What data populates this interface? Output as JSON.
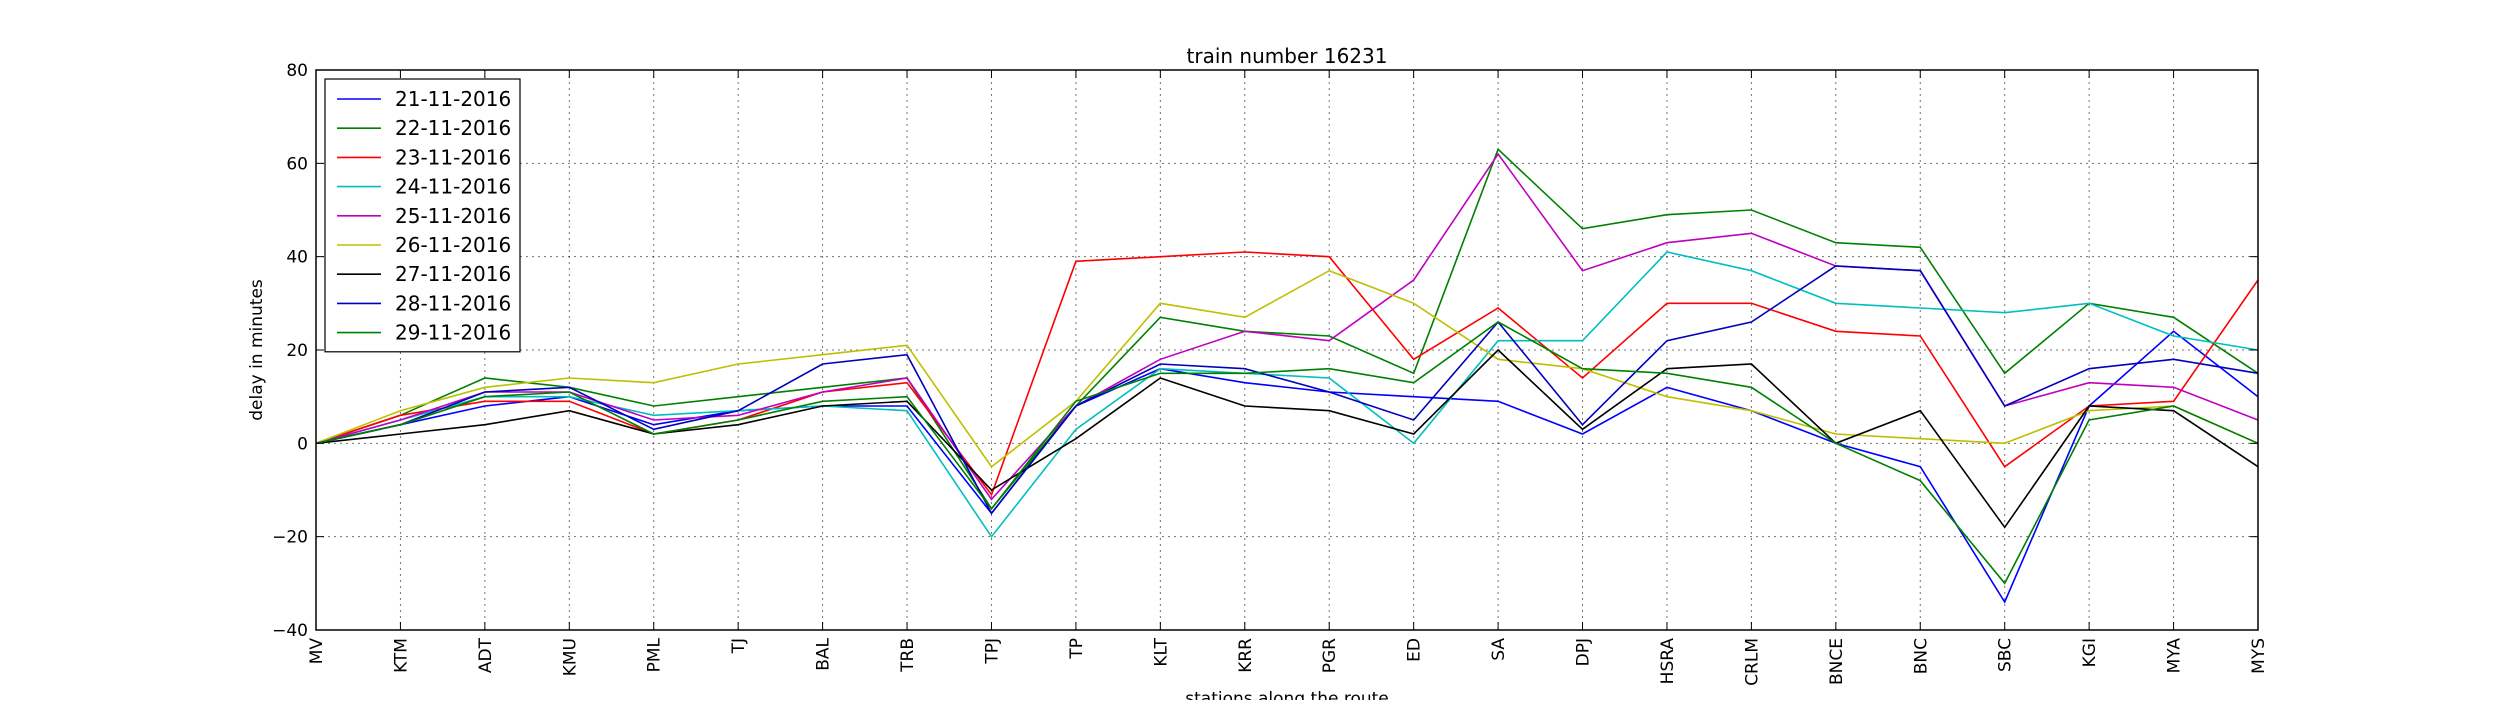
{
  "chart_data": {
    "type": "line",
    "title": "train number 16231",
    "xlabel": "stations along the route",
    "ylabel": "delay in minutes",
    "ylim": [
      -40,
      80
    ],
    "yticks": [
      -40,
      -20,
      0,
      20,
      40,
      60,
      80
    ],
    "ytick_labels": [
      "−40",
      "−20",
      "0",
      "20",
      "40",
      "60",
      "80"
    ],
    "grid": true,
    "legend_position": "top-left",
    "categories": [
      "MV",
      "KTM",
      "ADT",
      "KMU",
      "PML",
      "TJ",
      "BAL",
      "TRB",
      "TPJ",
      "TP",
      "KLT",
      "KRR",
      "PGR",
      "ED",
      "SA",
      "DPJ",
      "HSRA",
      "CRLM",
      "BNCE",
      "BNC",
      "SBC",
      "KGI",
      "MYA",
      "MYS"
    ],
    "series": [
      {
        "name": "21-11-2016",
        "color": "#0000ff",
        "values": [
          0,
          4,
          8,
          10,
          4,
          7,
          8,
          8,
          -15,
          8,
          16,
          13,
          11,
          10,
          9,
          2,
          12,
          7,
          0,
          -5,
          -34,
          8,
          24,
          10
        ]
      },
      {
        "name": "22-11-2016",
        "color": "#008000",
        "values": [
          0,
          6,
          14,
          12,
          8,
          10,
          12,
          14,
          -14,
          8,
          27,
          24,
          23,
          15,
          63,
          46,
          49,
          50,
          43,
          42,
          15,
          30,
          27,
          15
        ]
      },
      {
        "name": "23-11-2016",
        "color": "#ff0000",
        "values": [
          0,
          6,
          9,
          9,
          2,
          5,
          11,
          13,
          -11,
          39,
          40,
          41,
          40,
          18,
          29,
          14,
          30,
          30,
          24,
          23,
          -5,
          8,
          9,
          35
        ]
      },
      {
        "name": "24-11-2016",
        "color": "#00bfbf",
        "values": [
          0,
          5,
          10,
          10,
          6,
          7,
          8,
          7,
          -20,
          3,
          16,
          15,
          14,
          0,
          22,
          22,
          41,
          37,
          30,
          29,
          28,
          30,
          23,
          20
        ]
      },
      {
        "name": "25-11-2016",
        "color": "#bf00bf",
        "values": [
          0,
          5,
          11,
          11,
          5,
          6,
          11,
          14,
          -12,
          8,
          18,
          24,
          22,
          35,
          62,
          37,
          43,
          45,
          38,
          37,
          8,
          13,
          12,
          5
        ]
      },
      {
        "name": "26-11-2016",
        "color": "#bfbf00",
        "values": [
          0,
          7,
          12,
          14,
          13,
          17,
          19,
          21,
          -5,
          9,
          30,
          27,
          37,
          30,
          18,
          16,
          10,
          7,
          2,
          1,
          0,
          7,
          8,
          0
        ]
      },
      {
        "name": "27-11-2016",
        "color": "#000000",
        "values": [
          0,
          2,
          4,
          7,
          2,
          4,
          8,
          9,
          -10,
          1,
          14,
          8,
          7,
          2,
          20,
          3,
          16,
          17,
          0,
          7,
          -18,
          8,
          7,
          -5
        ]
      },
      {
        "name": "28-11-2016",
        "color": "#0000bf",
        "values": [
          0,
          4,
          11,
          12,
          3,
          7,
          17,
          19,
          -15,
          8,
          17,
          16,
          11,
          5,
          26,
          4,
          22,
          26,
          38,
          37,
          8,
          16,
          18,
          15
        ]
      },
      {
        "name": "29-11-2016",
        "color": "#008000",
        "values": [
          0,
          4,
          10,
          11,
          2,
          5,
          9,
          10,
          -14,
          9,
          15,
          15,
          16,
          13,
          26,
          16,
          15,
          12,
          0,
          -8,
          -30,
          5,
          8,
          0
        ]
      }
    ]
  }
}
